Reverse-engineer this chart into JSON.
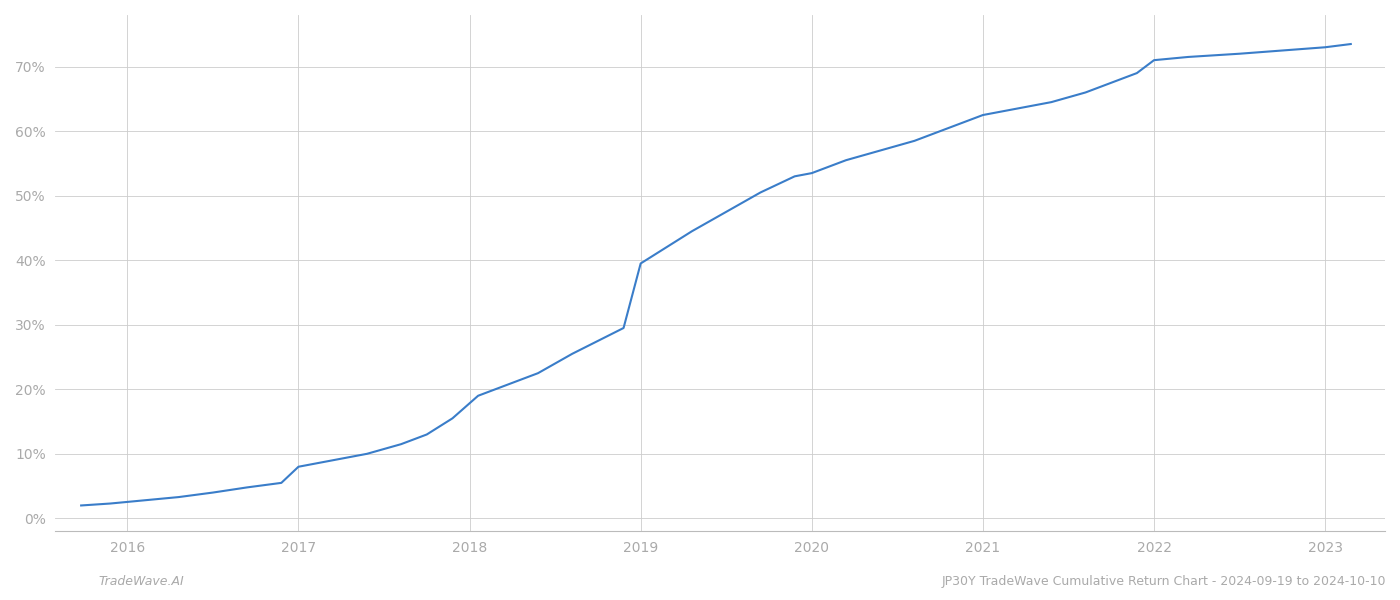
{
  "title": "JP30Y TradeWave Cumulative Return Chart - 2024-09-19 to 2024-10-10",
  "watermark": "TradeWave.AI",
  "line_color": "#3a7dc9",
  "background_color": "#ffffff",
  "grid_color": "#cccccc",
  "x_years": [
    2016,
    2017,
    2018,
    2019,
    2020,
    2021,
    2022,
    2023
  ],
  "x_data": [
    2015.73,
    2015.9,
    2016.1,
    2016.3,
    2016.5,
    2016.7,
    2016.9,
    2017.0,
    2017.2,
    2017.4,
    2017.6,
    2017.75,
    2017.9,
    2018.05,
    2018.2,
    2018.4,
    2018.6,
    2018.75,
    2018.9,
    2019.0,
    2019.15,
    2019.3,
    2019.5,
    2019.7,
    2019.9,
    2020.0,
    2020.2,
    2020.4,
    2020.6,
    2020.8,
    2021.0,
    2021.2,
    2021.4,
    2021.6,
    2021.75,
    2021.9,
    2022.0,
    2022.2,
    2022.5,
    2022.75,
    2023.0,
    2023.15
  ],
  "y_data": [
    2.0,
    2.3,
    2.8,
    3.3,
    4.0,
    4.8,
    5.5,
    8.0,
    9.0,
    10.0,
    11.5,
    13.0,
    15.5,
    19.0,
    20.5,
    22.5,
    25.5,
    27.5,
    29.5,
    39.5,
    42.0,
    44.5,
    47.5,
    50.5,
    53.0,
    53.5,
    55.5,
    57.0,
    58.5,
    60.5,
    62.5,
    63.5,
    64.5,
    66.0,
    67.5,
    69.0,
    71.0,
    71.5,
    72.0,
    72.5,
    73.0,
    73.5
  ],
  "ylim": [
    -2,
    78
  ],
  "yticks": [
    0,
    10,
    20,
    30,
    40,
    50,
    60,
    70
  ],
  "xlim": [
    2015.58,
    2023.35
  ],
  "tick_fontsize": 10,
  "footer_fontsize": 9,
  "line_width": 1.5
}
